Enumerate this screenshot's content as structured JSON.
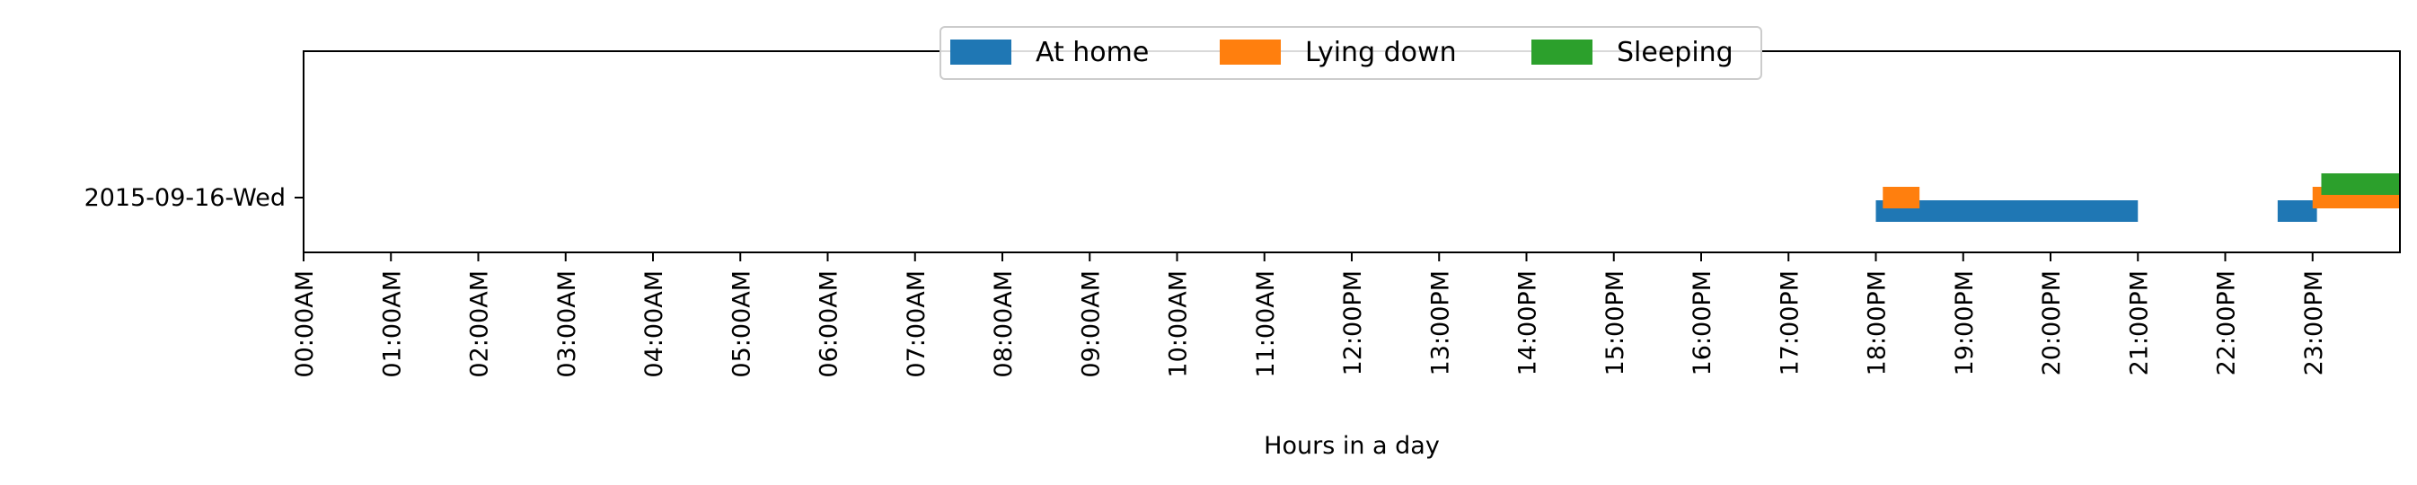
{
  "chart_data": {
    "type": "timeline",
    "title": "",
    "xlabel": "Hours in a day",
    "ylabel": "",
    "xlim": [
      0,
      24
    ],
    "x_ticks": [
      "00:00AM",
      "01:00AM",
      "02:00AM",
      "03:00AM",
      "04:00AM",
      "05:00AM",
      "06:00AM",
      "07:00AM",
      "08:00AM",
      "09:00AM",
      "10:00AM",
      "11:00AM",
      "12:00PM",
      "13:00PM",
      "14:00PM",
      "15:00PM",
      "16:00PM",
      "17:00PM",
      "18:00PM",
      "19:00PM",
      "20:00PM",
      "21:00PM",
      "22:00PM",
      "23:00PM"
    ],
    "rows": [
      "2015-09-16-Wed"
    ],
    "legend_position": "top-center",
    "grid": false,
    "series": [
      {
        "name": "At home",
        "color": "#1f77b4",
        "intervals": [
          {
            "row": "2015-09-16-Wed",
            "start": 18.0,
            "end": 21.0
          },
          {
            "row": "2015-09-16-Wed",
            "start": 22.6,
            "end": 23.05
          }
        ]
      },
      {
        "name": "Lying down",
        "color": "#ff7f0e",
        "intervals": [
          {
            "row": "2015-09-16-Wed",
            "start": 18.08,
            "end": 18.5
          },
          {
            "row": "2015-09-16-Wed",
            "start": 23.0,
            "end": 24.0
          }
        ]
      },
      {
        "name": "Sleeping",
        "color": "#2ca02c",
        "intervals": [
          {
            "row": "2015-09-16-Wed",
            "start": 23.1,
            "end": 24.0
          }
        ]
      }
    ]
  }
}
